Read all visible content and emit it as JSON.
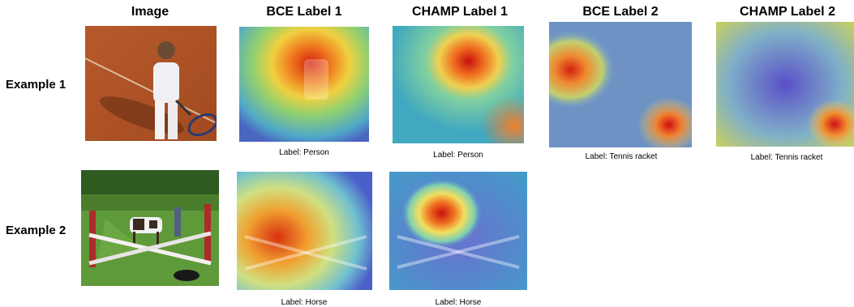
{
  "columns": [
    "Image",
    "BCE Label 1",
    "CHAMP Label 1",
    "BCE Label 2",
    "CHAMP Label 2"
  ],
  "rows": [
    "Example 1",
    "Example 2"
  ],
  "captions": {
    "ex1_bce1": "Label: Person",
    "ex1_champ1": "Label: Person",
    "ex1_bce2": "Label: Tennis racket",
    "ex1_champ2": "Label: Tennis racket",
    "ex2_bce1": "Label: Horse",
    "ex2_champ1": "Label: Horse"
  }
}
